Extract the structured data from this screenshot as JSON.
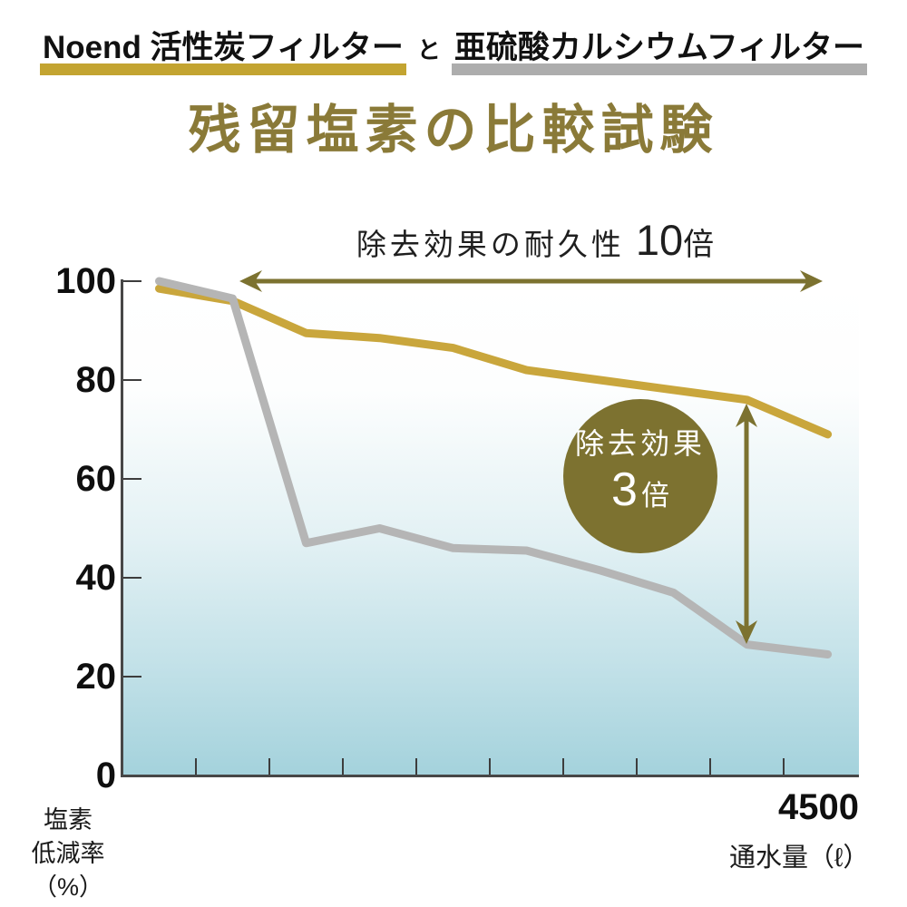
{
  "header": {
    "series1_label": "Noend 活性炭フィルター",
    "connector": "と",
    "series2_label": "亜硫酸カルシウムフィルター",
    "title": "残留塩素の比較試験",
    "series1_underline_color": "#c3a431",
    "series2_underline_color": "#adadad"
  },
  "axis": {
    "x_tick_label": "4500",
    "x_axis_title": "通水量（ℓ）",
    "y_axis_title_lines": [
      "塩素",
      "低減率",
      "（%）"
    ]
  },
  "annotations": {
    "durability": {
      "label": "除去効果の耐久性",
      "value": "10",
      "unit": "倍"
    },
    "effect": {
      "label": "除去効果",
      "value": "3",
      "unit": "倍"
    },
    "arrow_color": "#7c7230",
    "badge_color": "#7d7230"
  },
  "chart_data": {
    "type": "line",
    "title": "残留塩素の比較試験",
    "xlabel": "通水量（ℓ）",
    "ylabel": "塩素低減率（%）",
    "x": [
      250,
      750,
      1250,
      1750,
      2250,
      2750,
      3250,
      3750,
      4250,
      4800
    ],
    "series": [
      {
        "name": "Noend 活性炭フィルター",
        "color": "#c9a63c",
        "values": [
          98.5,
          96,
          89.5,
          88.5,
          86.5,
          82,
          80,
          78,
          76,
          69
        ]
      },
      {
        "name": "亜硫酸カルシウムフィルター",
        "color": "#b5b5b5",
        "values": [
          100,
          96.5,
          47,
          50,
          46,
          45.5,
          41.5,
          37,
          26.5,
          24.5
        ]
      }
    ],
    "xlim": [
      0,
      5010
    ],
    "ylim": [
      0,
      100
    ],
    "y_ticks": [
      100,
      80,
      60,
      40,
      20,
      0
    ],
    "x_tick_interval": 500,
    "x_tick_max": 4500,
    "grid": false,
    "legend": "none"
  }
}
